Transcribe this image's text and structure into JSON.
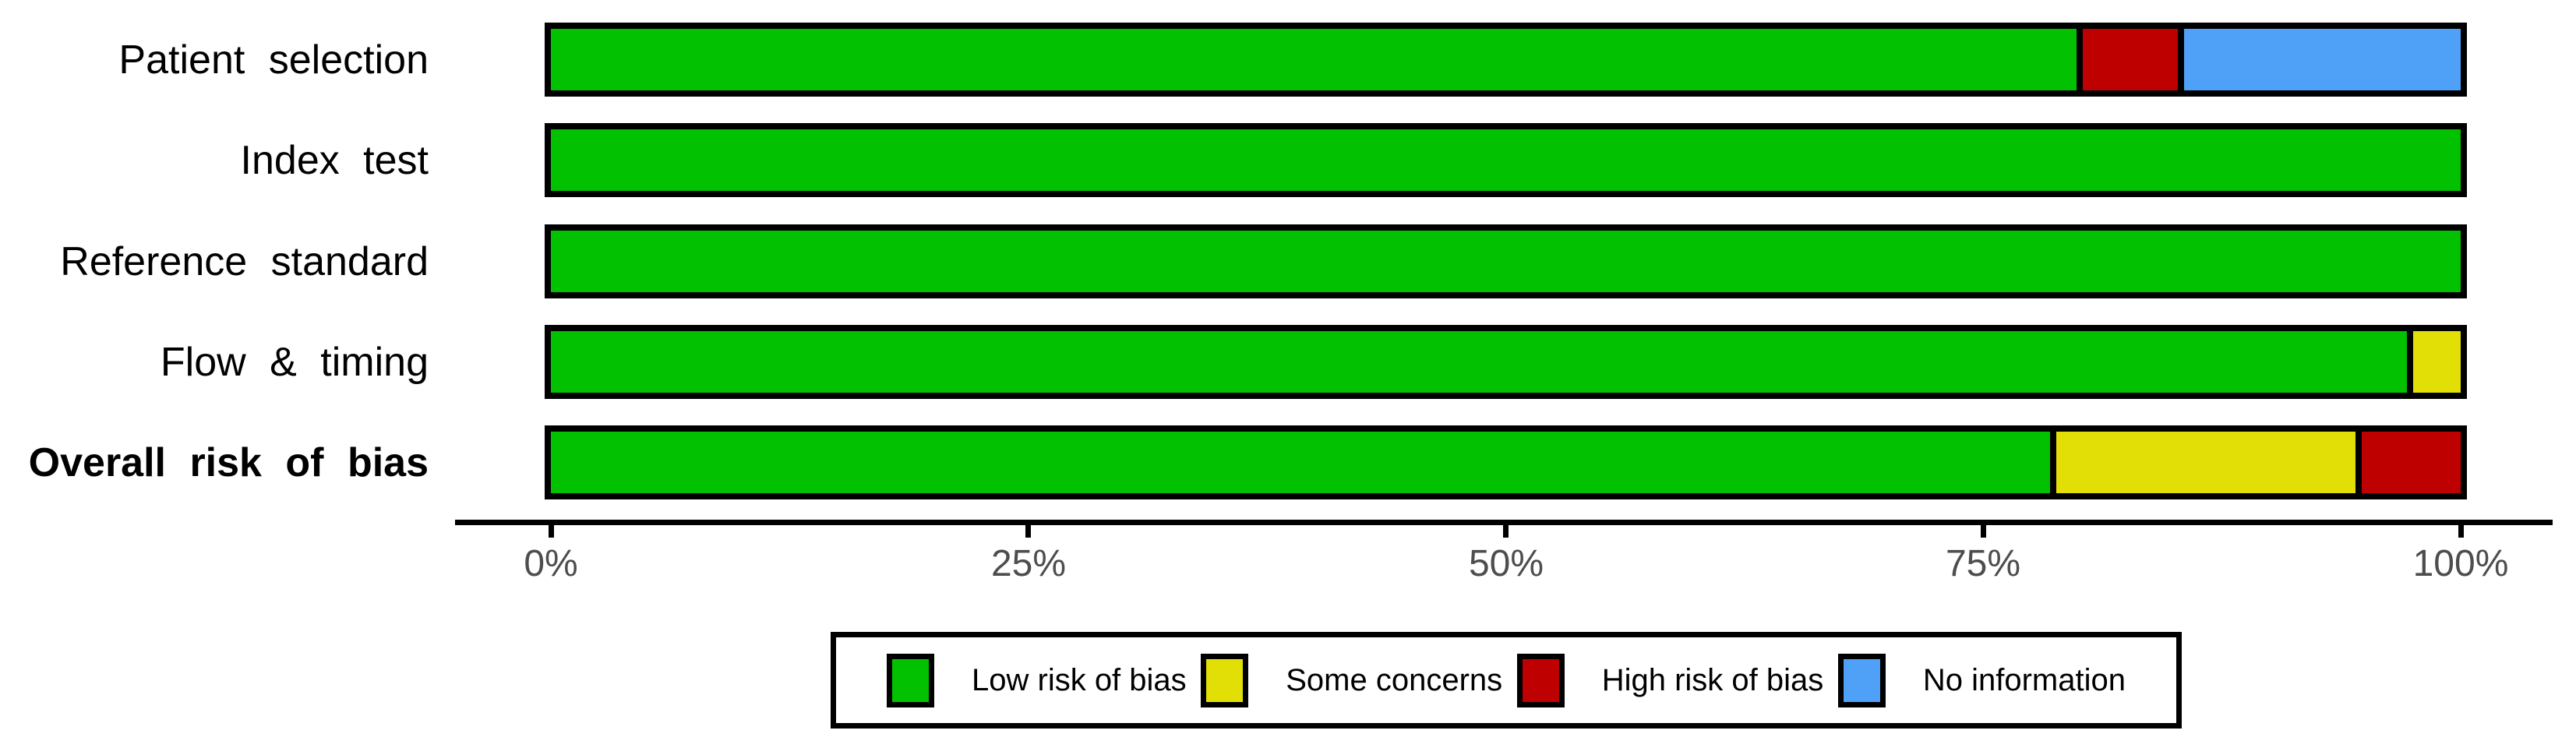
{
  "colors": {
    "low": "#02C100",
    "some": "#E2DF07",
    "high": "#BF0000",
    "no_info": "#4EA1F7",
    "bar_border": "#000000",
    "axis_line": "#000000",
    "axis_text": "#4D4D4D",
    "background": "#FFFFFF"
  },
  "chart_data": {
    "type": "bar",
    "orientation": "horizontal",
    "stacked": true,
    "units": "percent",
    "title": "",
    "xlabel": "",
    "ylabel": "",
    "categories": [
      "Patient selection",
      "Index test",
      "Reference standard",
      "Flow & timing",
      "Overall risk of bias"
    ],
    "bold_categories": [
      "Overall risk of bias"
    ],
    "series": [
      {
        "name": "Low risk of bias",
        "color_key": "low",
        "values": [
          79.9,
          100,
          100,
          97.2,
          78.5
        ]
      },
      {
        "name": "Some concerns",
        "color_key": "some",
        "values": [
          0,
          0,
          0,
          2.8,
          16
        ]
      },
      {
        "name": "High risk of bias",
        "color_key": "high",
        "values": [
          5.3,
          0,
          0,
          0,
          5.5
        ]
      },
      {
        "name": "No information",
        "color_key": "no_info",
        "values": [
          14.8,
          0,
          0,
          0,
          0
        ]
      }
    ],
    "x_axis": {
      "ticks": [
        "0%",
        "25%",
        "50%",
        "75%",
        "100%"
      ],
      "min": 0,
      "max": 100,
      "grid": false
    },
    "legend_position": "bottom"
  },
  "legend": {
    "items": [
      {
        "label": "Low risk of bias",
        "color_key": "low"
      },
      {
        "label": "Some concerns",
        "color_key": "some"
      },
      {
        "label": "High risk of bias",
        "color_key": "high"
      },
      {
        "label": "No information",
        "color_key": "no_info"
      }
    ]
  }
}
